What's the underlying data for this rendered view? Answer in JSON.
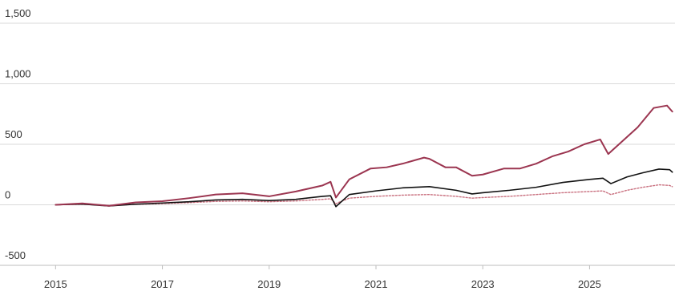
{
  "chart_data": {
    "type": "line",
    "title": "",
    "xlabel": "",
    "ylabel": "",
    "grid": true,
    "legend": "none",
    "xlim": [
      2014.95,
      2026.6
    ],
    "ylim": [
      -500,
      1500
    ],
    "x_ticks": [
      {
        "value": 2015,
        "label": "2015"
      },
      {
        "value": 2017,
        "label": "2017"
      },
      {
        "value": 2019,
        "label": "2019"
      },
      {
        "value": 2021,
        "label": "2021"
      },
      {
        "value": 2023,
        "label": "2023"
      },
      {
        "value": 2025,
        "label": "2025"
      }
    ],
    "y_ticks": [
      {
        "value": 1500,
        "label": "1,500"
      },
      {
        "value": 1000,
        "label": "1,000"
      },
      {
        "value": 500,
        "label": "500"
      },
      {
        "value": 0,
        "label": "0"
      },
      {
        "value": -500,
        "label": "-500"
      }
    ],
    "series": [
      {
        "color": "#9b3550",
        "style": "solid",
        "points": [
          [
            2015.0,
            0
          ],
          [
            2015.5,
            12
          ],
          [
            2016.0,
            -8
          ],
          [
            2016.5,
            20
          ],
          [
            2017.0,
            30
          ],
          [
            2017.5,
            55
          ],
          [
            2018.0,
            85
          ],
          [
            2018.5,
            95
          ],
          [
            2019.0,
            70
          ],
          [
            2019.5,
            110
          ],
          [
            2020.0,
            160
          ],
          [
            2020.15,
            190
          ],
          [
            2020.25,
            60
          ],
          [
            2020.5,
            210
          ],
          [
            2020.9,
            300
          ],
          [
            2021.2,
            310
          ],
          [
            2021.5,
            340
          ],
          [
            2021.9,
            390
          ],
          [
            2022.0,
            380
          ],
          [
            2022.3,
            310
          ],
          [
            2022.5,
            310
          ],
          [
            2022.8,
            240
          ],
          [
            2023.0,
            250
          ],
          [
            2023.4,
            300
          ],
          [
            2023.7,
            300
          ],
          [
            2024.0,
            340
          ],
          [
            2024.3,
            400
          ],
          [
            2024.6,
            440
          ],
          [
            2024.9,
            500
          ],
          [
            2025.2,
            540
          ],
          [
            2025.35,
            420
          ],
          [
            2025.6,
            520
          ],
          [
            2025.9,
            640
          ],
          [
            2026.2,
            800
          ],
          [
            2026.45,
            820
          ],
          [
            2026.55,
            770
          ]
        ]
      },
      {
        "color": "#111111",
        "style": "solid",
        "points": [
          [
            2015.0,
            0
          ],
          [
            2015.5,
            6
          ],
          [
            2016.0,
            -10
          ],
          [
            2016.5,
            5
          ],
          [
            2017.0,
            15
          ],
          [
            2017.5,
            25
          ],
          [
            2018.0,
            40
          ],
          [
            2018.5,
            45
          ],
          [
            2019.0,
            35
          ],
          [
            2019.5,
            45
          ],
          [
            2020.0,
            70
          ],
          [
            2020.15,
            75
          ],
          [
            2020.25,
            -15
          ],
          [
            2020.5,
            85
          ],
          [
            2021.0,
            115
          ],
          [
            2021.5,
            140
          ],
          [
            2022.0,
            150
          ],
          [
            2022.5,
            120
          ],
          [
            2022.8,
            90
          ],
          [
            2023.0,
            100
          ],
          [
            2023.5,
            120
          ],
          [
            2024.0,
            145
          ],
          [
            2024.5,
            185
          ],
          [
            2025.0,
            210
          ],
          [
            2025.25,
            220
          ],
          [
            2025.4,
            175
          ],
          [
            2025.7,
            230
          ],
          [
            2026.0,
            265
          ],
          [
            2026.3,
            295
          ],
          [
            2026.5,
            290
          ],
          [
            2026.55,
            270
          ]
        ]
      },
      {
        "color": "#c9707f",
        "style": "dotted",
        "points": [
          [
            2015.0,
            0
          ],
          [
            2015.5,
            4
          ],
          [
            2016.0,
            -5
          ],
          [
            2016.5,
            4
          ],
          [
            2017.0,
            10
          ],
          [
            2017.5,
            18
          ],
          [
            2018.0,
            28
          ],
          [
            2018.5,
            32
          ],
          [
            2019.0,
            25
          ],
          [
            2019.5,
            32
          ],
          [
            2020.0,
            45
          ],
          [
            2020.15,
            50
          ],
          [
            2020.25,
            10
          ],
          [
            2020.5,
            55
          ],
          [
            2021.0,
            70
          ],
          [
            2021.5,
            80
          ],
          [
            2022.0,
            85
          ],
          [
            2022.5,
            70
          ],
          [
            2022.8,
            55
          ],
          [
            2023.0,
            60
          ],
          [
            2023.5,
            70
          ],
          [
            2024.0,
            85
          ],
          [
            2024.5,
            100
          ],
          [
            2025.0,
            110
          ],
          [
            2025.25,
            115
          ],
          [
            2025.4,
            85
          ],
          [
            2025.7,
            120
          ],
          [
            2026.0,
            145
          ],
          [
            2026.3,
            165
          ],
          [
            2026.5,
            160
          ],
          [
            2026.55,
            150
          ]
        ]
      }
    ]
  }
}
